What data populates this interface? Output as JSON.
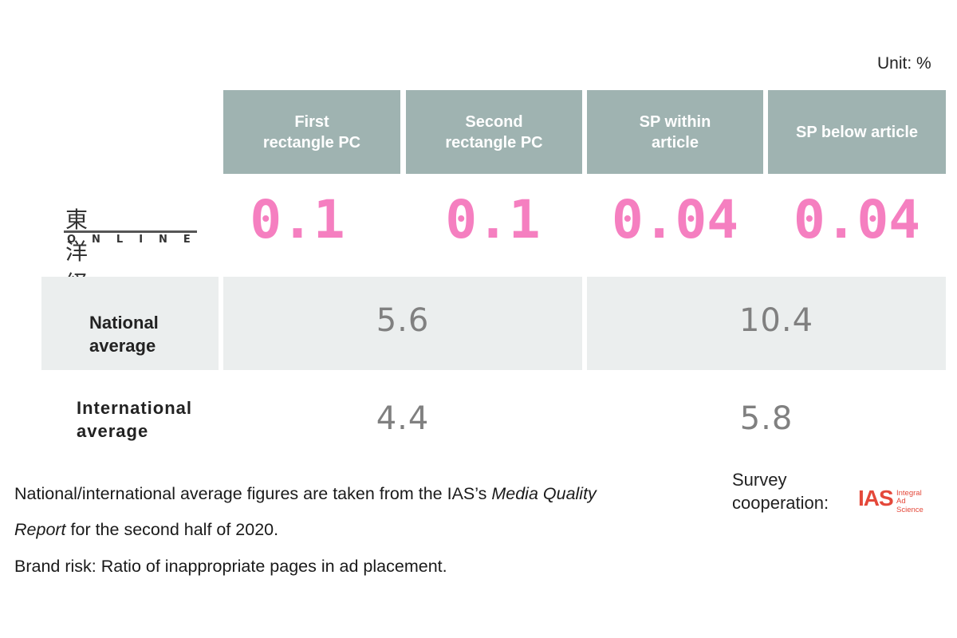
{
  "unit_label": "Unit: %",
  "brand_logo": {
    "japanese": "東洋経済",
    "english": "ONLINE"
  },
  "chart_data": {
    "type": "table",
    "title": "",
    "columns": [
      "First\nrectangle PC",
      "Second\nrectangle PC",
      "SP within\narticle",
      "SP below article"
    ],
    "rows": [
      {
        "label": "東洋経済 ONLINE",
        "values": [
          "0.1",
          "0.1",
          "0.04",
          "0.04"
        ]
      },
      {
        "label": "National\naverage",
        "values": [
          "5.6",
          "10.4"
        ],
        "spans": [
          [
            0,
            1
          ],
          [
            2,
            3
          ]
        ]
      },
      {
        "label": "International\naverage",
        "values": [
          "4.4",
          "5.8"
        ],
        "spans": [
          [
            0,
            1
          ],
          [
            2,
            3
          ]
        ]
      }
    ],
    "colors": {
      "header_bg": "#9fb3b1",
      "brand_value": "#f57fc0",
      "average_value": "#808080",
      "band_bg": "#ebeeee"
    }
  },
  "notes": {
    "line1_pre": "National/international average figures are taken from the IAS’s ",
    "line1_italic": "Media Quality",
    "line2_italic": "Report",
    "line2_post": " for the second half of 2020.",
    "line3": "Brand risk: Ratio of inappropriate pages in ad placement."
  },
  "survey": {
    "label": "Survey\ncooperation:",
    "logo_mark": "IAS",
    "logo_text": "Integral\nAd Science"
  }
}
